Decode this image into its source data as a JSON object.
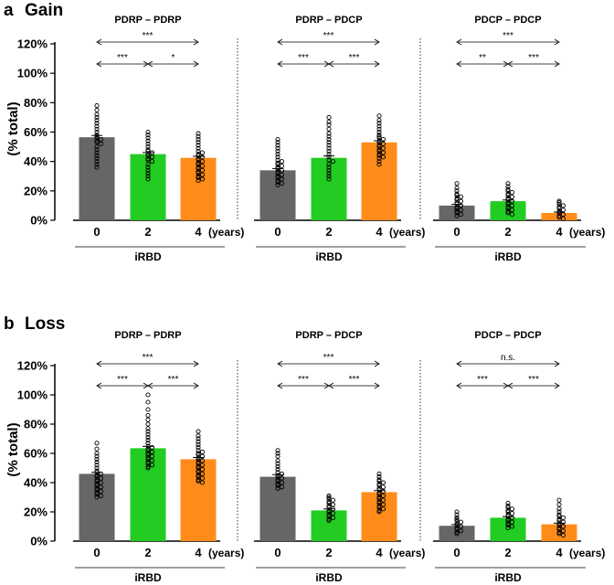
{
  "panels": [
    {
      "letter": "a",
      "title": "Gain",
      "ylabel": "(% total)",
      "yticks": [
        "0%",
        "20%",
        "40%",
        "60%",
        "80%",
        "100%",
        "120%"
      ],
      "ylim": [
        0,
        120
      ],
      "groups": [
        {
          "title": "PDRP – PDRP",
          "xtick_labels": [
            "0",
            "2",
            "4"
          ],
          "bars": [
            {
              "color": "#666666",
              "mean": 56.5,
              "sem": 1.2,
              "points": [
                78,
                75,
                72,
                70,
                68,
                66,
                64,
                62,
                60,
                58,
                57,
                56,
                55,
                54,
                53,
                52,
                50,
                48,
                46,
                44,
                42,
                40,
                38,
                36
              ]
            },
            {
              "color": "#22cc22",
              "mean": 45,
              "sem": 1.1,
              "points": [
                60,
                58,
                56,
                54,
                52,
                50,
                48,
                47,
                46,
                45,
                44,
                43,
                42,
                41,
                40,
                38,
                36,
                34,
                32,
                30,
                28
              ]
            },
            {
              "color": "#ff8c1a",
              "mean": 42.5,
              "sem": 1.0,
              "points": [
                59,
                57,
                55,
                53,
                51,
                49,
                47,
                46,
                45,
                44,
                43,
                42,
                41,
                40,
                39,
                38,
                37,
                36,
                35,
                34,
                33,
                32,
                31,
                30,
                29,
                28,
                27
              ]
            }
          ],
          "comparisons": [
            {
              "from": 0,
              "to": 2,
              "label": "***",
              "level": 2
            },
            {
              "from": 0,
              "to": 1,
              "label": "***",
              "level": 1
            },
            {
              "from": 1,
              "to": 2,
              "label": "*",
              "level": 1
            }
          ],
          "unit_label": "(years)",
          "group_label": "iRBD"
        },
        {
          "title": "PDRP – PDCP",
          "xtick_labels": [
            "0",
            "2",
            "4"
          ],
          "bars": [
            {
              "color": "#666666",
              "mean": 34,
              "sem": 1.2,
              "points": [
                55,
                53,
                51,
                49,
                47,
                45,
                43,
                41,
                40,
                39,
                38,
                37,
                36,
                35,
                34,
                33,
                32,
                31,
                30,
                29,
                28,
                27,
                26,
                25,
                24
              ]
            },
            {
              "color": "#22cc22",
              "mean": 42.5,
              "sem": 1.3,
              "points": [
                70,
                67,
                65,
                62,
                59,
                57,
                55,
                53,
                51,
                49,
                47,
                45,
                43,
                41,
                40,
                38,
                36,
                34,
                32,
                30,
                28
              ]
            },
            {
              "color": "#ff8c1a",
              "mean": 53,
              "sem": 1.1,
              "points": [
                71,
                68,
                66,
                64,
                62,
                60,
                58,
                57,
                56,
                55,
                54,
                53,
                52,
                51,
                50,
                49,
                48,
                47,
                46,
                45,
                44,
                43,
                42,
                40,
                38
              ]
            }
          ],
          "comparisons": [
            {
              "from": 0,
              "to": 2,
              "label": "***",
              "level": 2
            },
            {
              "from": 0,
              "to": 1,
              "label": "***",
              "level": 1
            },
            {
              "from": 1,
              "to": 2,
              "label": "***",
              "level": 1
            }
          ],
          "unit_label": "(years)",
          "group_label": "iRBD"
        },
        {
          "title": "PDCP – PDCP",
          "xtick_labels": [
            "0",
            "2",
            "4"
          ],
          "bars": [
            {
              "color": "#666666",
              "mean": 10,
              "sem": 0.8,
              "points": [
                25,
                22,
                20,
                18,
                17,
                16,
                15,
                14,
                13,
                12,
                11,
                10,
                9,
                8,
                7,
                6,
                5,
                4,
                3
              ]
            },
            {
              "color": "#22cc22",
              "mean": 13,
              "sem": 0.8,
              "points": [
                25,
                23,
                21,
                20,
                19,
                18,
                17,
                16,
                15,
                14,
                13,
                12,
                11,
                10,
                9,
                8,
                7,
                6,
                5,
                4
              ]
            },
            {
              "color": "#ff8c1a",
              "mean": 5,
              "sem": 0.6,
              "points": [
                13,
                12,
                11,
                10,
                9,
                8,
                7,
                6,
                5,
                4,
                3,
                2,
                1
              ]
            }
          ],
          "comparisons": [
            {
              "from": 0,
              "to": 2,
              "label": "***",
              "level": 2
            },
            {
              "from": 0,
              "to": 1,
              "label": "**",
              "level": 1
            },
            {
              "from": 1,
              "to": 2,
              "label": "***",
              "level": 1
            }
          ],
          "unit_label": "(years)",
          "group_label": "iRBD"
        }
      ]
    },
    {
      "letter": "b",
      "title": "Loss",
      "ylabel": "(% total)",
      "yticks": [
        "0%",
        "20%",
        "40%",
        "60%",
        "80%",
        "100%",
        "120%"
      ],
      "ylim": [
        0,
        120
      ],
      "groups": [
        {
          "title": "PDRP – PDRP",
          "xtick_labels": [
            "0",
            "2",
            "4"
          ],
          "bars": [
            {
              "color": "#666666",
              "mean": 46,
              "sem": 1.0,
              "points": [
                67,
                63,
                60,
                58,
                56,
                54,
                52,
                50,
                48,
                47,
                46,
                45,
                44,
                43,
                42,
                41,
                40,
                39,
                38,
                37,
                36,
                35,
                34,
                33,
                32,
                31,
                30
              ]
            },
            {
              "color": "#22cc22",
              "mean": 63.5,
              "sem": 1.3,
              "points": [
                100,
                95,
                90,
                86,
                83,
                80,
                77,
                75,
                73,
                71,
                69,
                67,
                65,
                64,
                63,
                62,
                61,
                60,
                59,
                58,
                57,
                56,
                55,
                54,
                53,
                52,
                51,
                50
              ]
            },
            {
              "color": "#ff8c1a",
              "mean": 56,
              "sem": 1.2,
              "points": [
                75,
                72,
                70,
                68,
                66,
                64,
                62,
                61,
                60,
                59,
                58,
                57,
                56,
                55,
                54,
                53,
                52,
                51,
                50,
                49,
                48,
                47,
                46,
                45,
                44,
                43,
                42,
                41,
                40
              ]
            }
          ],
          "comparisons": [
            {
              "from": 0,
              "to": 2,
              "label": "***",
              "level": 2
            },
            {
              "from": 0,
              "to": 1,
              "label": "***",
              "level": 1
            },
            {
              "from": 1,
              "to": 2,
              "label": "***",
              "level": 1
            }
          ],
          "unit_label": "(years)",
          "group_label": "iRBD"
        },
        {
          "title": "PDRP – PDCP",
          "xtick_labels": [
            "0",
            "2",
            "4"
          ],
          "bars": [
            {
              "color": "#666666",
              "mean": 44,
              "sem": 1.5,
              "points": [
                62,
                60,
                58,
                55,
                53,
                51,
                49,
                47,
                46,
                45,
                44,
                43,
                42,
                41,
                40,
                39,
                38,
                37,
                36
              ]
            },
            {
              "color": "#22cc22",
              "mean": 21,
              "sem": 1.0,
              "points": [
                31,
                30,
                29,
                28,
                27,
                26,
                25,
                24,
                23,
                22,
                21,
                20,
                19,
                18,
                17,
                16,
                15,
                14
              ]
            },
            {
              "color": "#ff8c1a",
              "mean": 33.5,
              "sem": 1.0,
              "points": [
                46,
                44,
                42,
                41,
                40,
                39,
                38,
                37,
                36,
                35,
                34,
                33,
                32,
                31,
                30,
                29,
                28,
                27,
                26,
                25,
                24,
                23,
                22,
                21,
                20
              ]
            }
          ],
          "comparisons": [
            {
              "from": 0,
              "to": 2,
              "label": "***",
              "level": 2
            },
            {
              "from": 0,
              "to": 1,
              "label": "***",
              "level": 1
            },
            {
              "from": 1,
              "to": 2,
              "label": "***",
              "level": 1
            }
          ],
          "unit_label": "(years)",
          "group_label": "iRBD"
        },
        {
          "title": "PDCP – PDCP",
          "xtick_labels": [
            "0",
            "2",
            "4"
          ],
          "bars": [
            {
              "color": "#666666",
              "mean": 10.5,
              "sem": 0.8,
              "points": [
                20,
                18,
                16,
                15,
                14,
                13,
                12,
                11,
                10,
                9,
                8,
                7,
                6,
                5
              ]
            },
            {
              "color": "#22cc22",
              "mean": 16,
              "sem": 0.8,
              "points": [
                26,
                24,
                23,
                22,
                21,
                20,
                19,
                18,
                17,
                16,
                15,
                14,
                13,
                12,
                11,
                10,
                9
              ]
            },
            {
              "color": "#ff8c1a",
              "mean": 11.5,
              "sem": 0.8,
              "points": [
                28,
                25,
                22,
                20,
                18,
                17,
                16,
                15,
                14,
                13,
                12,
                11,
                10,
                9,
                8,
                7,
                6,
                5,
                4
              ]
            }
          ],
          "comparisons": [
            {
              "from": 0,
              "to": 2,
              "label": "n.s.",
              "level": 2
            },
            {
              "from": 0,
              "to": 1,
              "label": "***",
              "level": 1
            },
            {
              "from": 1,
              "to": 2,
              "label": "***",
              "level": 1
            }
          ],
          "unit_label": "(years)",
          "group_label": "iRBD"
        }
      ]
    }
  ],
  "chart_data": [
    {
      "type": "bar",
      "title": "a Gain",
      "ylabel": "(% total)",
      "xlabel": "iRBD (years)",
      "ylim": [
        0,
        120
      ],
      "categories": [
        "0",
        "2",
        "4"
      ],
      "series": [
        {
          "name": "PDRP – PDRP",
          "values": [
            56.5,
            45,
            42.5
          ]
        },
        {
          "name": "PDRP – PDCP",
          "values": [
            34,
            42.5,
            53
          ]
        },
        {
          "name": "PDCP – PDCP",
          "values": [
            10,
            13,
            5
          ]
        }
      ]
    },
    {
      "type": "bar",
      "title": "b Loss",
      "ylabel": "(% total)",
      "xlabel": "iRBD (years)",
      "ylim": [
        0,
        120
      ],
      "categories": [
        "0",
        "2",
        "4"
      ],
      "series": [
        {
          "name": "PDRP – PDRP",
          "values": [
            46,
            63.5,
            56
          ]
        },
        {
          "name": "PDRP – PDCP",
          "values": [
            44,
            21,
            33.5
          ]
        },
        {
          "name": "PDCP – PDCP",
          "values": [
            10.5,
            16,
            11.5
          ]
        }
      ]
    }
  ]
}
